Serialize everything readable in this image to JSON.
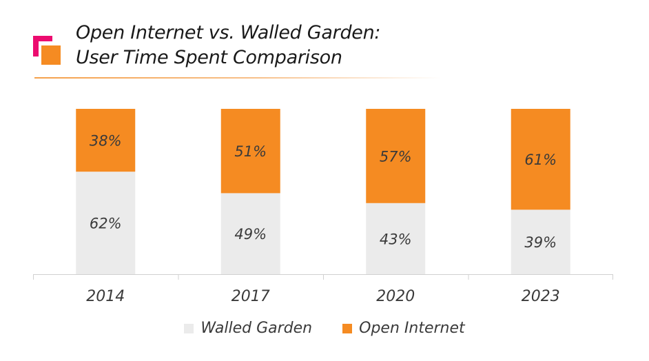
{
  "title": {
    "line1": "Open Internet vs. Walled Garden:",
    "line2": "User Time Spent Comparison"
  },
  "colors": {
    "walled_garden": "#ebebeb",
    "open_internet": "#f58b22",
    "axis": "#d0d0d0",
    "label_text": "#3a3a3a"
  },
  "chart_data": {
    "type": "bar",
    "stacked": true,
    "categories": [
      "2014",
      "2017",
      "2020",
      "2023"
    ],
    "series": [
      {
        "name": "Walled Garden",
        "values": [
          62,
          49,
          43,
          39
        ],
        "labels": [
          "62%",
          "49%",
          "43%",
          "39%"
        ]
      },
      {
        "name": "Open Internet",
        "values": [
          38,
          51,
          57,
          61
        ],
        "labels": [
          "38%",
          "51%",
          "57%",
          "61%"
        ]
      }
    ],
    "ylim": [
      0,
      100
    ],
    "grid": false,
    "legend": "bottom",
    "unit": "%"
  }
}
